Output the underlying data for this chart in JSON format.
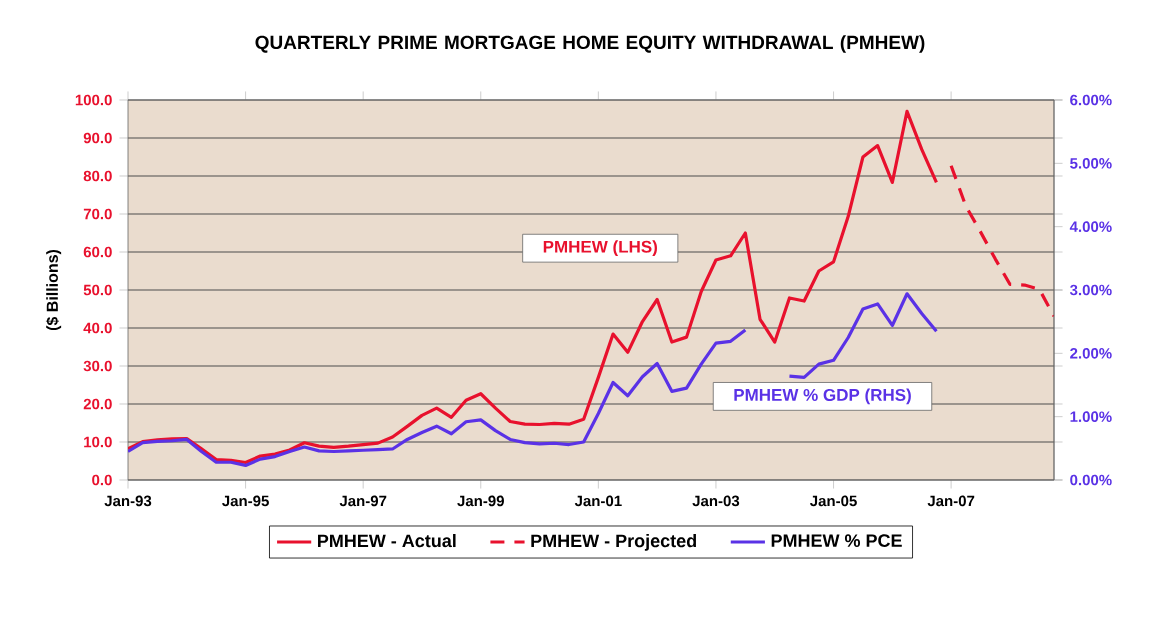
{
  "chart_data": {
    "type": "line",
    "title": "QUARTERLY PRIME MORTGAGE HOME EQUITY WITHDRAWAL (PMHEW)",
    "ylabel": "($ Billions)",
    "x": [
      "1993-01",
      "1993-04",
      "1993-07",
      "1993-10",
      "1994-01",
      "1994-04",
      "1994-07",
      "1994-10",
      "1995-01",
      "1995-04",
      "1995-07",
      "1995-10",
      "1996-01",
      "1996-04",
      "1996-07",
      "1996-10",
      "1997-01",
      "1997-04",
      "1997-07",
      "1997-10",
      "1998-01",
      "1998-04",
      "1998-07",
      "1998-10",
      "1999-01",
      "1999-04",
      "1999-07",
      "1999-10",
      "2000-01",
      "2000-04",
      "2000-07",
      "2000-10",
      "2001-01",
      "2001-04",
      "2001-07",
      "2001-10",
      "2002-01",
      "2002-04",
      "2002-07",
      "2002-10",
      "2003-01",
      "2003-04",
      "2003-07",
      "2003-10",
      "2004-01",
      "2004-04",
      "2004-07",
      "2004-10",
      "2005-01",
      "2005-04",
      "2005-07",
      "2005-10",
      "2006-01",
      "2006-04",
      "2006-07",
      "2006-10"
    ],
    "series": [
      {
        "name": "PMHEW - Actual",
        "color": "#e8112d",
        "line_style": "solid",
        "values": [
          8.2,
          10.1,
          10.6,
          10.8,
          10.9,
          8.2,
          5.4,
          5.2,
          4.6,
          6.3,
          6.8,
          7.9,
          9.8,
          8.9,
          8.6,
          8.9,
          9.3,
          9.7,
          11.3,
          14.1,
          17.0,
          18.9,
          16.5,
          21.0,
          22.7,
          18.9,
          15.4,
          14.7,
          14.6,
          14.9,
          14.7,
          16.0,
          27.0,
          38.4,
          33.6,
          41.7,
          47.5,
          36.3,
          37.6,
          49.6,
          57.9,
          59.0,
          65.0,
          42.3,
          36.3,
          47.9,
          47.1,
          55.0,
          57.4,
          69.4,
          85.0,
          88.0,
          78.3,
          97.0,
          87.0,
          78.3
        ]
      },
      {
        "name": "PMHEW - Projected",
        "color": "#e8112d",
        "line_style": "dashed",
        "x": [
          "2007-01",
          "2007-04",
          "2007-07",
          "2007-10",
          "2008-01",
          "2008-04",
          "2008-07",
          "2008-10"
        ],
        "values": [
          82.7,
          72.1,
          65.3,
          58.2,
          51.5,
          51.3,
          50.2,
          43.1
        ]
      },
      {
        "name": "PMHEW % PCE",
        "color": "#5a32e6",
        "line_style": "solid",
        "axis": "y2",
        "values": [
          0.45,
          0.59,
          0.61,
          0.62,
          0.64,
          0.45,
          0.28,
          0.28,
          0.23,
          0.33,
          0.37,
          0.45,
          0.52,
          0.46,
          0.45,
          0.46,
          0.47,
          0.48,
          0.49,
          0.64,
          0.75,
          0.85,
          0.73,
          0.92,
          0.95,
          0.78,
          0.64,
          0.59,
          0.57,
          0.58,
          0.56,
          0.6,
          1.05,
          1.54,
          1.33,
          1.63,
          1.84,
          1.4,
          1.45,
          1.83,
          2.16,
          2.19,
          2.37,
          null,
          null,
          1.64,
          1.62,
          1.83,
          1.89,
          2.25,
          2.7,
          2.78,
          2.44,
          2.94,
          2.63,
          2.35
        ]
      }
    ],
    "xlim": [
      "1993-01",
      "2008-10"
    ],
    "xticks": [
      {
        "value": "1993-01",
        "label": "Jan-93"
      },
      {
        "value": "1995-01",
        "label": "Jan-95"
      },
      {
        "value": "1997-01",
        "label": "Jan-97"
      },
      {
        "value": "1999-01",
        "label": "Jan-99"
      },
      {
        "value": "2001-01",
        "label": "Jan-01"
      },
      {
        "value": "2003-01",
        "label": "Jan-03"
      },
      {
        "value": "2005-01",
        "label": "Jan-05"
      },
      {
        "value": "2007-01",
        "label": "Jan-07"
      }
    ],
    "ylim": [
      0,
      100
    ],
    "yticks": [
      {
        "value": 0,
        "label": "0.0"
      },
      {
        "value": 10,
        "label": "10.0"
      },
      {
        "value": 20,
        "label": "20.0"
      },
      {
        "value": 30,
        "label": "30.0"
      },
      {
        "value": 40,
        "label": "40.0"
      },
      {
        "value": 50,
        "label": "50.0"
      },
      {
        "value": 60,
        "label": "60.0"
      },
      {
        "value": 70,
        "label": "70.0"
      },
      {
        "value": 80,
        "label": "80.0"
      },
      {
        "value": 90,
        "label": "90.0"
      },
      {
        "value": 100,
        "label": "100.0"
      }
    ],
    "y2lim": [
      0,
      6
    ],
    "y2ticks": [
      {
        "value": 0,
        "label": "0.00%"
      },
      {
        "value": 1,
        "label": "1.00%"
      },
      {
        "value": 2,
        "label": "2.00%"
      },
      {
        "value": 3,
        "label": "3.00%"
      },
      {
        "value": 4,
        "label": "4.00%"
      },
      {
        "value": 5,
        "label": "5.00%"
      },
      {
        "value": 6,
        "label": "6.00%"
      }
    ],
    "annotations": [
      "PMHEW (LHS)",
      "PMHEW % GDP (RHS)"
    ],
    "grid": "y",
    "legend": "bottom",
    "marker": "none"
  }
}
